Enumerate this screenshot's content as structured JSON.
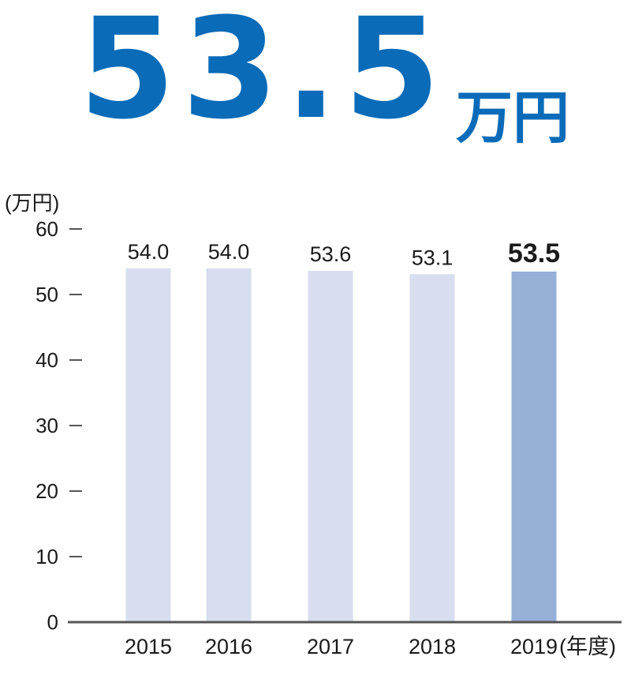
{
  "headline": {
    "value": "53.5",
    "unit": "万円"
  },
  "colors": {
    "headline": "#0a6bb8",
    "bar": "#d8deef",
    "bar_highlight": "#96b0d8",
    "axis": "#555555",
    "text": "#1a1a1a"
  },
  "chart_data": {
    "type": "bar",
    "categories": [
      "2015",
      "2016",
      "2017",
      "2018",
      "2019"
    ],
    "values": [
      54.0,
      54.0,
      53.6,
      53.1,
      53.5
    ],
    "value_labels": [
      "54.0",
      "54.0",
      "53.6",
      "53.1",
      "53.5"
    ],
    "highlight_index": 4,
    "ylabel": "(万円)",
    "xlabel": "(年度)",
    "ylim": [
      0,
      60
    ],
    "yticks": [
      0,
      10,
      20,
      30,
      40,
      50,
      60
    ],
    "grid": false
  }
}
